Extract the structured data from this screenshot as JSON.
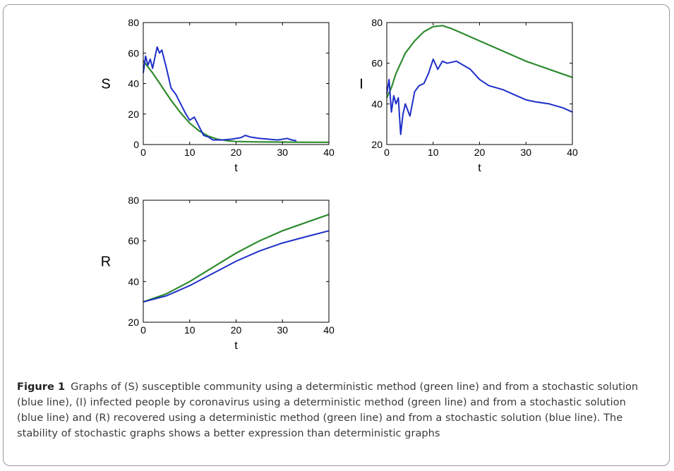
{
  "caption": {
    "label": "Figure 1",
    "text": "Graphs of (S) susceptible community using a deterministic method (green line) and from a stochastic solution (blue line), (I) infected people by coronavirus using a deterministic method (green line) and from a stochastic solution (blue line) and (R) recovered using a deterministic method (green line) and from a stochastic solution (blue line). The stability of stochastic graphs shows a better expression than deterministic graphs"
  },
  "colors": {
    "deterministic": "#2e8b2e",
    "stochastic": "#1f2fc8",
    "axis": "#000000"
  },
  "chart_data": [
    {
      "type": "line",
      "xlabel": "t",
      "ylabel": "S",
      "xlim": [
        0,
        40
      ],
      "ylim": [
        0,
        80
      ],
      "xticks": [
        0,
        10,
        20,
        30,
        40
      ],
      "yticks": [
        0,
        20,
        40,
        60,
        80
      ],
      "series": [
        {
          "color": "#2e8b2e",
          "x": [
            0,
            2,
            4,
            6,
            8,
            10,
            12,
            14,
            16,
            18,
            20,
            25,
            30,
            35,
            40
          ],
          "y": [
            55,
            47,
            38,
            29,
            21,
            14,
            9,
            5.5,
            3.5,
            2.5,
            2,
            1.7,
            1.6,
            1.5,
            1.5
          ]
        },
        {
          "color": "#1f2fc8",
          "x": [
            0,
            0.5,
            1,
            1.5,
            2,
            2.5,
            3,
            3.5,
            4,
            5,
            6,
            7,
            8,
            9,
            10,
            11,
            12,
            13,
            14,
            15,
            17,
            19,
            21,
            22,
            23,
            25,
            27,
            29,
            31,
            32,
            33
          ],
          "y": [
            47,
            58,
            52,
            56,
            50,
            57,
            64,
            60,
            62,
            50,
            37,
            33,
            27,
            21,
            16,
            18,
            12,
            6,
            5,
            3,
            3,
            3.5,
            4.5,
            6,
            5,
            4,
            3.5,
            3,
            4,
            3,
            2.5
          ]
        }
      ]
    },
    {
      "type": "line",
      "xlabel": "t",
      "ylabel": "I",
      "xlim": [
        0,
        40
      ],
      "ylim": [
        20,
        80
      ],
      "xticks": [
        0,
        10,
        20,
        30,
        40
      ],
      "yticks": [
        20,
        40,
        60,
        80
      ],
      "series": [
        {
          "color": "#2e8b2e",
          "x": [
            0,
            1,
            2,
            4,
            6,
            8,
            10,
            12,
            14,
            16,
            18,
            20,
            25,
            30,
            35,
            40
          ],
          "y": [
            43,
            48,
            55,
            65,
            71,
            75.5,
            78,
            78.5,
            77,
            75,
            73,
            71,
            66,
            61,
            57,
            53
          ]
        },
        {
          "color": "#1f2fc8",
          "x": [
            0,
            0.5,
            1,
            1.5,
            2,
            2.5,
            3,
            3.5,
            4,
            5,
            6,
            7,
            8,
            9,
            10,
            11,
            12,
            13,
            15,
            18,
            20,
            22,
            25,
            28,
            30,
            32,
            35,
            38,
            40
          ],
          "y": [
            45,
            52,
            36,
            44,
            40,
            43,
            25,
            35,
            40,
            34,
            46,
            49,
            50,
            55,
            62,
            57,
            61,
            60,
            61,
            57,
            52,
            49,
            47,
            44,
            42,
            41,
            40,
            38,
            36
          ]
        }
      ]
    },
    {
      "type": "line",
      "xlabel": "t",
      "ylabel": "R",
      "xlim": [
        0,
        40
      ],
      "ylim": [
        20,
        80
      ],
      "xticks": [
        0,
        10,
        20,
        30,
        40
      ],
      "yticks": [
        20,
        40,
        60,
        80
      ],
      "series": [
        {
          "color": "#2e8b2e",
          "x": [
            0,
            5,
            10,
            15,
            20,
            25,
            30,
            35,
            40
          ],
          "y": [
            30,
            34,
            40,
            47,
            54,
            60,
            65,
            69,
            73
          ]
        },
        {
          "color": "#1f2fc8",
          "x": [
            0,
            5,
            10,
            15,
            20,
            25,
            30,
            35,
            40
          ],
          "y": [
            30,
            33,
            38,
            44,
            50,
            55,
            59,
            62,
            65
          ]
        }
      ]
    }
  ]
}
